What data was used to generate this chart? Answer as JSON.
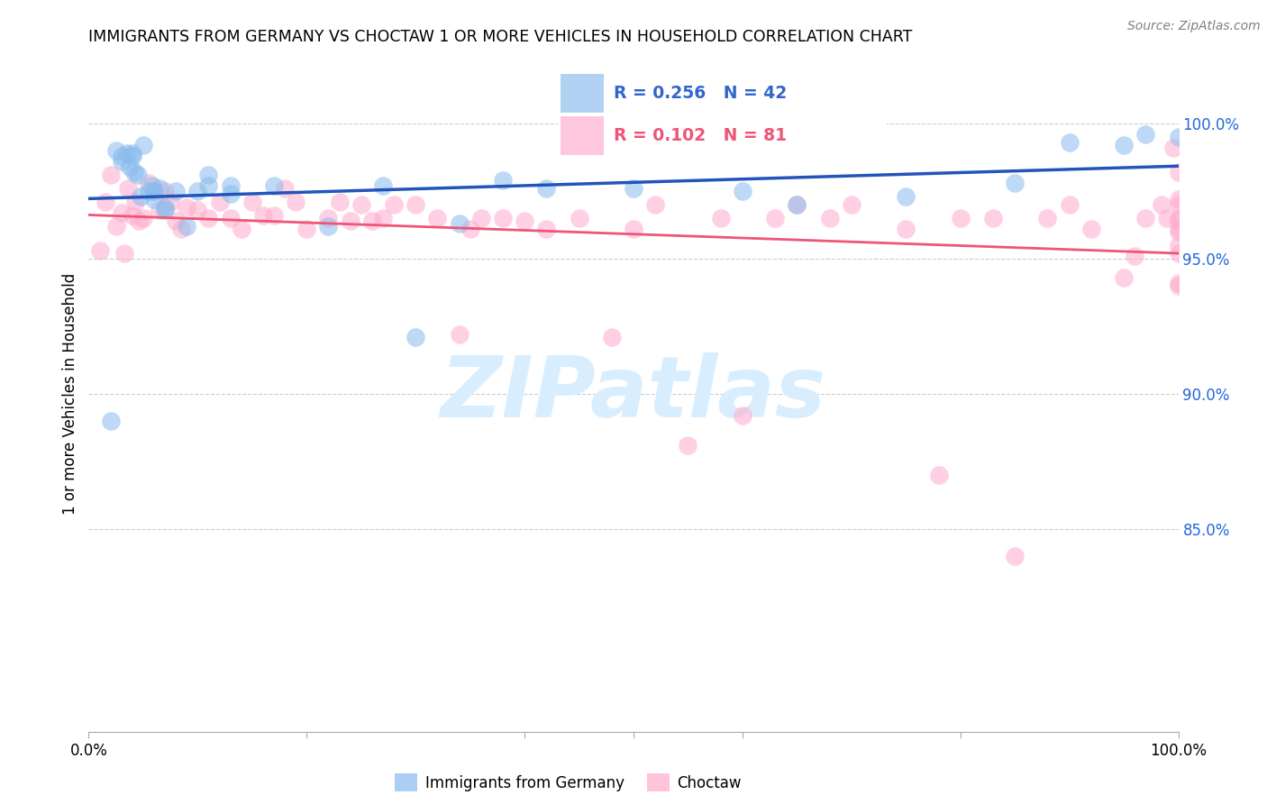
{
  "title": "IMMIGRANTS FROM GERMANY VS CHOCTAW 1 OR MORE VEHICLES IN HOUSEHOLD CORRELATION CHART",
  "source": "Source: ZipAtlas.com",
  "ylabel": "1 or more Vehicles in Household",
  "ytick_labels": [
    "100.0%",
    "95.0%",
    "90.0%",
    "85.0%"
  ],
  "ytick_values": [
    1.0,
    0.95,
    0.9,
    0.85
  ],
  "xrange": [
    0.0,
    1.0
  ],
  "yrange": [
    0.775,
    1.025
  ],
  "blue_r": "R = 0.256",
  "blue_n": "N = 42",
  "pink_r": "R = 0.102",
  "pink_n": "N = 81",
  "blue_fill": "#88BBEE",
  "pink_fill": "#FFAACC",
  "blue_line": "#2255BB",
  "pink_line": "#EE5577",
  "legend_text_blue": "#3366CC",
  "legend_text_pink": "#EE5577",
  "watermark_color": "#D8EEFF",
  "blue_x": [
    0.02,
    0.025,
    0.03,
    0.035,
    0.038,
    0.04,
    0.042,
    0.045,
    0.048,
    0.05,
    0.055,
    0.058,
    0.06,
    0.065,
    0.07,
    0.08,
    0.09,
    0.1,
    0.11,
    0.13,
    0.17,
    0.22,
    0.27,
    0.34,
    0.3,
    0.42,
    0.5,
    0.6,
    0.75,
    0.85,
    0.9,
    0.97,
    0.03,
    0.04,
    0.06,
    0.07,
    0.11,
    0.13,
    0.38,
    0.65,
    0.95,
    1.0
  ],
  "blue_y": [
    0.89,
    0.99,
    0.986,
    0.989,
    0.984,
    0.989,
    0.982,
    0.981,
    0.973,
    0.992,
    0.975,
    0.977,
    0.972,
    0.976,
    0.969,
    0.975,
    0.962,
    0.975,
    0.981,
    0.974,
    0.977,
    0.962,
    0.977,
    0.963,
    0.921,
    0.976,
    0.976,
    0.975,
    0.973,
    0.978,
    0.993,
    0.996,
    0.988,
    0.988,
    0.975,
    0.968,
    0.977,
    0.977,
    0.979,
    0.97,
    0.992,
    0.995
  ],
  "pink_x": [
    0.01,
    0.015,
    0.02,
    0.025,
    0.03,
    0.033,
    0.036,
    0.04,
    0.043,
    0.046,
    0.05,
    0.055,
    0.06,
    0.065,
    0.07,
    0.075,
    0.08,
    0.085,
    0.09,
    0.1,
    0.11,
    0.12,
    0.13,
    0.14,
    0.15,
    0.16,
    0.17,
    0.18,
    0.19,
    0.2,
    0.22,
    0.23,
    0.24,
    0.25,
    0.26,
    0.27,
    0.28,
    0.3,
    0.32,
    0.34,
    0.35,
    0.36,
    0.38,
    0.4,
    0.42,
    0.45,
    0.48,
    0.5,
    0.52,
    0.55,
    0.58,
    0.6,
    0.63,
    0.65,
    0.68,
    0.7,
    0.75,
    0.78,
    0.8,
    0.83,
    0.85,
    0.88,
    0.9,
    0.92,
    0.95,
    0.96,
    0.97,
    0.985,
    0.99,
    0.995,
    1.0,
    1.0,
    1.0,
    1.0,
    1.0,
    1.0,
    1.0,
    1.0,
    1.0,
    1.0,
    1.0
  ],
  "pink_y": [
    0.953,
    0.971,
    0.981,
    0.962,
    0.967,
    0.952,
    0.976,
    0.966,
    0.971,
    0.964,
    0.965,
    0.978,
    0.975,
    0.968,
    0.975,
    0.971,
    0.964,
    0.961,
    0.969,
    0.968,
    0.965,
    0.971,
    0.965,
    0.961,
    0.971,
    0.966,
    0.966,
    0.976,
    0.971,
    0.961,
    0.965,
    0.971,
    0.964,
    0.97,
    0.964,
    0.965,
    0.97,
    0.97,
    0.965,
    0.922,
    0.961,
    0.965,
    0.965,
    0.964,
    0.961,
    0.965,
    0.921,
    0.961,
    0.97,
    0.881,
    0.965,
    0.892,
    0.965,
    0.97,
    0.965,
    0.97,
    0.961,
    0.87,
    0.965,
    0.965,
    0.84,
    0.965,
    0.97,
    0.961,
    0.943,
    0.951,
    0.965,
    0.97,
    0.965,
    0.991,
    0.982,
    0.972,
    0.964,
    0.955,
    0.94,
    0.952,
    0.961,
    0.97,
    0.965,
    0.96,
    0.941
  ]
}
